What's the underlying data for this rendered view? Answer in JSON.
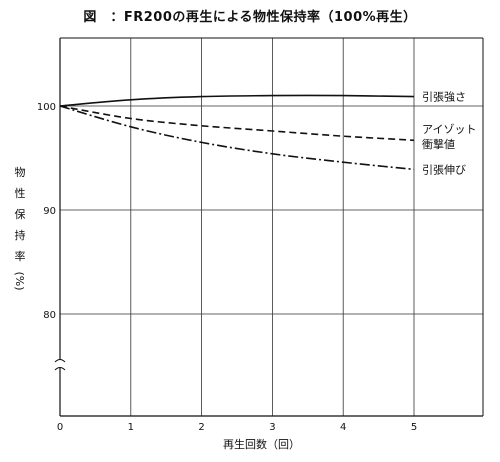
{
  "title": "図　：FR200の再生による物性保持率（100%再生）",
  "chart_data": {
    "type": "line",
    "title": "図　：FR200の再生による物性保持率（100%再生）",
    "xlabel": "再生回数（回）",
    "ylabel": "物性保持率(%)",
    "ylabel_chars": [
      "物",
      "性",
      "保",
      "持",
      "率",
      "(%)"
    ],
    "x_ticks": [
      "0",
      "1",
      "2",
      "3",
      "4",
      "5"
    ],
    "y_ticks": [
      "100",
      "90",
      "80"
    ],
    "xlim": [
      0,
      6
    ],
    "y_axis_break": true,
    "grid": true,
    "series": [
      {
        "name": "引張強さ",
        "label_lines": [
          "引張強さ"
        ],
        "style": "solid",
        "x": [
          0,
          1,
          2,
          3,
          4,
          5
        ],
        "y": [
          100,
          100.6,
          100.9,
          101.0,
          101.0,
          100.9
        ]
      },
      {
        "name": "アイゾット衝撃値",
        "label_lines": [
          "アイゾット",
          "衝撃値"
        ],
        "style": "dashed",
        "x": [
          0,
          1,
          2,
          3,
          4,
          5
        ],
        "y": [
          100,
          98.8,
          98.1,
          97.6,
          97.1,
          96.7
        ]
      },
      {
        "name": "引張伸び",
        "label_lines": [
          "引張伸び"
        ],
        "style": "dashdot",
        "x": [
          0,
          1,
          2,
          3,
          4,
          5
        ],
        "y": [
          100,
          98.0,
          96.5,
          95.4,
          94.6,
          93.9
        ]
      }
    ]
  }
}
